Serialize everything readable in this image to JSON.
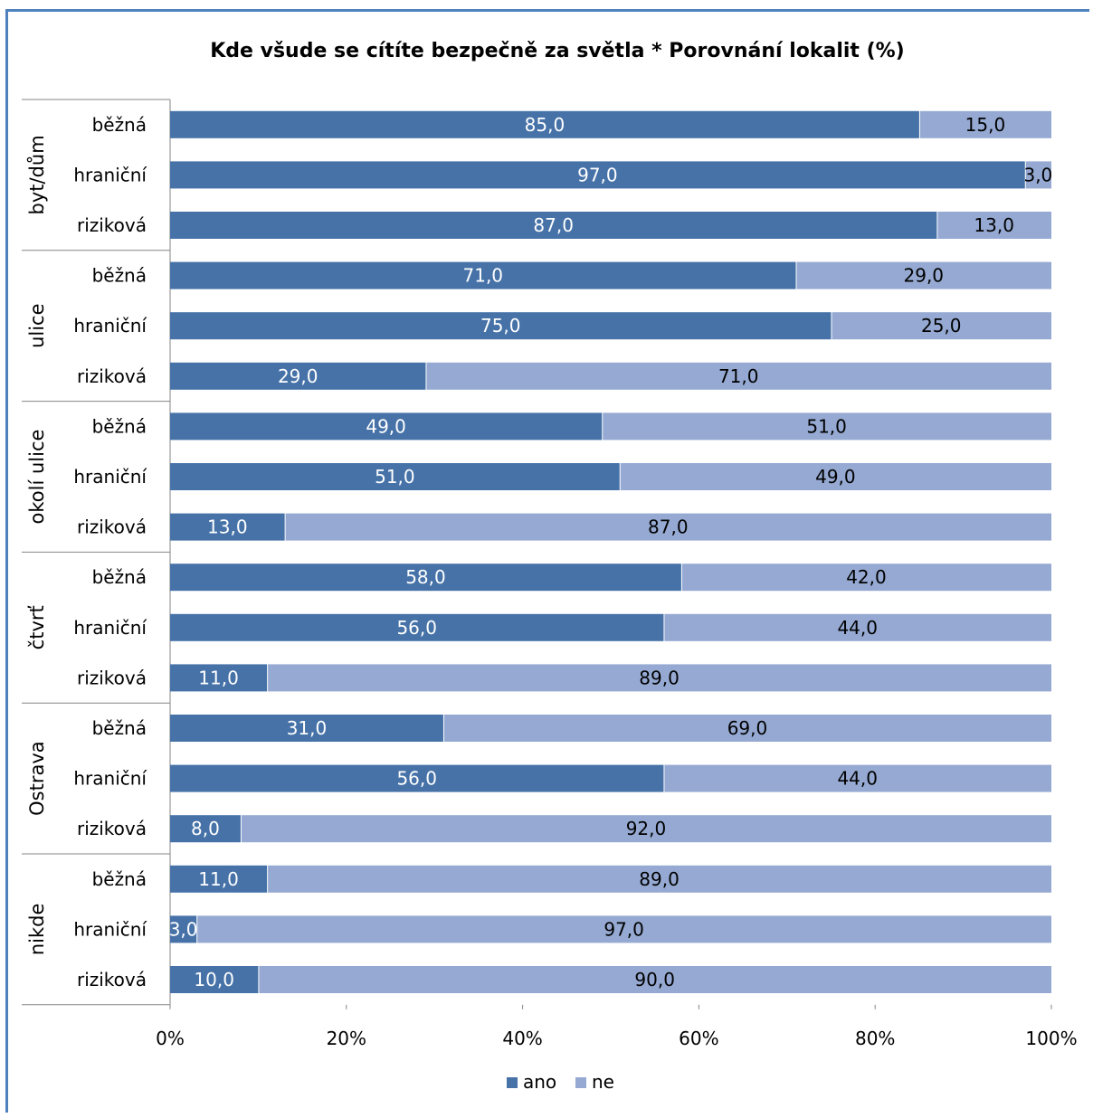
{
  "chart_data": {
    "type": "bar",
    "orientation": "horizontal",
    "stacked": "percent",
    "title": "Kde všude se cítíte bezpečně za světla * Porovnání lokalit (%)",
    "groups": [
      {
        "name": "byt/dům",
        "rows": [
          {
            "category": "běžná",
            "ano": 85.0,
            "ne": 15.0,
            "ano_label": "85,0",
            "ne_label": "15,0"
          },
          {
            "category": "hraniční",
            "ano": 97.0,
            "ne": 3.0,
            "ano_label": "97,0",
            "ne_label": "3,0"
          },
          {
            "category": "riziková",
            "ano": 87.0,
            "ne": 13.0,
            "ano_label": "87,0",
            "ne_label": "13,0"
          }
        ]
      },
      {
        "name": "ulice",
        "rows": [
          {
            "category": "běžná",
            "ano": 71.0,
            "ne": 29.0,
            "ano_label": "71,0",
            "ne_label": "29,0"
          },
          {
            "category": "hraniční",
            "ano": 75.0,
            "ne": 25.0,
            "ano_label": "75,0",
            "ne_label": "25,0"
          },
          {
            "category": "riziková",
            "ano": 29.0,
            "ne": 71.0,
            "ano_label": "29,0",
            "ne_label": "71,0"
          }
        ]
      },
      {
        "name": "okolí ulice",
        "rows": [
          {
            "category": "běžná",
            "ano": 49.0,
            "ne": 51.0,
            "ano_label": "49,0",
            "ne_label": "51,0"
          },
          {
            "category": "hraniční",
            "ano": 51.0,
            "ne": 49.0,
            "ano_label": "51,0",
            "ne_label": "49,0"
          },
          {
            "category": "riziková",
            "ano": 13.0,
            "ne": 87.0,
            "ano_label": "13,0",
            "ne_label": "87,0"
          }
        ]
      },
      {
        "name": "čtvrť",
        "rows": [
          {
            "category": "běžná",
            "ano": 58.0,
            "ne": 42.0,
            "ano_label": "58,0",
            "ne_label": "42,0"
          },
          {
            "category": "hraniční",
            "ano": 56.0,
            "ne": 44.0,
            "ano_label": "56,0",
            "ne_label": "44,0"
          },
          {
            "category": "riziková",
            "ano": 11.0,
            "ne": 89.0,
            "ano_label": "11,0",
            "ne_label": "89,0"
          }
        ]
      },
      {
        "name": "Ostrava",
        "rows": [
          {
            "category": "běžná",
            "ano": 31.0,
            "ne": 69.0,
            "ano_label": "31,0",
            "ne_label": "69,0"
          },
          {
            "category": "hraniční",
            "ano": 56.0,
            "ne": 44.0,
            "ano_label": "56,0",
            "ne_label": "44,0"
          },
          {
            "category": "riziková",
            "ano": 8.0,
            "ne": 92.0,
            "ano_label": "8,0",
            "ne_label": "92,0"
          }
        ]
      },
      {
        "name": "nikde",
        "rows": [
          {
            "category": "běžná",
            "ano": 11.0,
            "ne": 89.0,
            "ano_label": "11,0",
            "ne_label": "89,0"
          },
          {
            "category": "hraniční",
            "ano": 3.0,
            "ne": 97.0,
            "ano_label": "3,0",
            "ne_label": "97,0"
          },
          {
            "category": "riziková",
            "ano": 10.0,
            "ne": 90.0,
            "ano_label": "10,0",
            "ne_label": "90,0"
          }
        ]
      }
    ],
    "series": [
      {
        "name": "ano",
        "color": "#4672a8"
      },
      {
        "name": "ne",
        "color": "#95a9d2"
      }
    ],
    "xaxis_ticks": [
      "0%",
      "20%",
      "40%",
      "60%",
      "80%",
      "100%"
    ],
    "xlim": [
      0,
      100
    ],
    "grid": false,
    "legend_position": "bottom"
  }
}
